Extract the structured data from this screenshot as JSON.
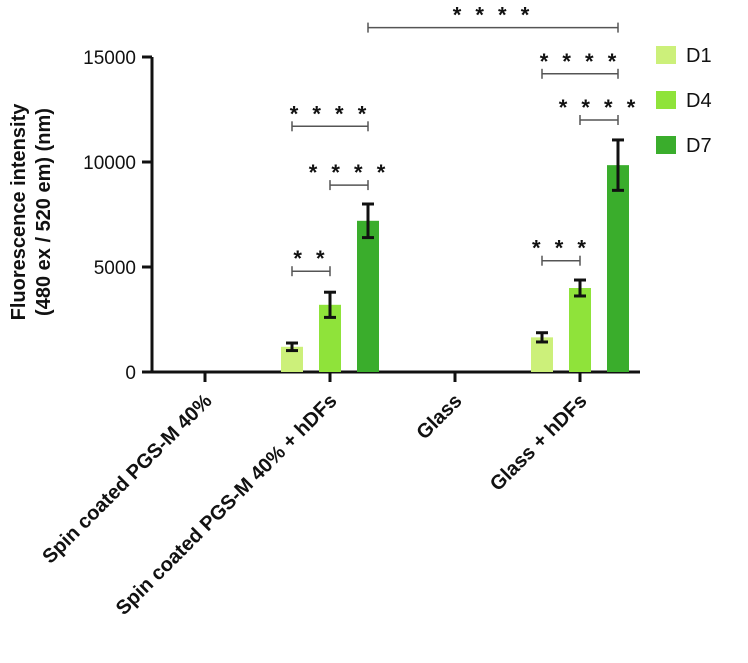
{
  "chart_data": {
    "type": "bar",
    "ylabel_line1": "Fluorescence intensity",
    "ylabel_line2": "(480 ex / 520 em)  (nm)",
    "ylim": [
      0,
      15000
    ],
    "yticks": [
      "0",
      "5000",
      "10000",
      "15000"
    ],
    "categories": [
      "Spin coated PGS-M 40%",
      "Spin coated PGS-M 40% + hDFs",
      "Glass",
      "Glass + hDFs"
    ],
    "series": [
      {
        "name": "D1",
        "color": "#ccf07a",
        "values": [
          0,
          1200,
          0,
          1650
        ],
        "errors": [
          0,
          180,
          0,
          220
        ]
      },
      {
        "name": "D4",
        "color": "#8fe33a",
        "values": [
          0,
          3200,
          0,
          4000
        ],
        "errors": [
          0,
          600,
          0,
          380
        ]
      },
      {
        "name": "D7",
        "color": "#3aad2c",
        "values": [
          0,
          7200,
          0,
          9850
        ],
        "errors": [
          0,
          800,
          0,
          1200
        ]
      }
    ],
    "legend_position": "right",
    "annotations": [
      {
        "text": "* *",
        "category": 1,
        "from_series": 0,
        "to_series": 1,
        "y": 4800
      },
      {
        "text": "* * * *",
        "category": 1,
        "from_series": 0,
        "to_series": 2,
        "y": 11700
      },
      {
        "text": "* * * *",
        "category": 1,
        "from_series": 1,
        "to_series": 2,
        "y": 8900
      },
      {
        "text": "* * *",
        "category": 3,
        "from_series": 0,
        "to_series": 1,
        "y": 5300
      },
      {
        "text": "* * * *",
        "category": 3,
        "from_series": 0,
        "to_series": 2,
        "y": 14200
      },
      {
        "text": "* * * *",
        "category": 3,
        "from_series": 1,
        "to_series": 2,
        "y": 12000
      },
      {
        "text": "* * * *",
        "category_from": 1,
        "series_from": 2,
        "category_to": 3,
        "series_to": 2,
        "y": 16400
      }
    ]
  }
}
